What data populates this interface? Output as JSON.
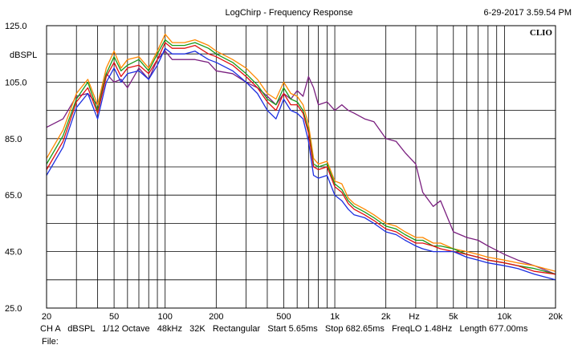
{
  "header": {
    "title": "LogChirp - Frequency Response",
    "timestamp": "6-29-2017 3.59.54 PM"
  },
  "brand": "CLIO",
  "status": {
    "channel": "CH A",
    "unit": "dBSPL",
    "smoothing": "1/12 Octave",
    "sample_rate": "48kHz",
    "size": "32K",
    "window": "Rectangular",
    "start": "Start 5.65ms",
    "stop": "Stop 682.65ms",
    "freqlo": "FreqLO 1.48Hz",
    "length": "Length 677.00ms"
  },
  "file_label": "File:",
  "chart_data": {
    "type": "line",
    "title": "LogChirp - Frequency Response",
    "xlabel": "Hz",
    "ylabel": "dBSPL",
    "xscale": "log",
    "xlim": [
      20,
      20000
    ],
    "ylim": [
      25,
      125
    ],
    "grid": true,
    "y_ticks": [
      "125.0",
      "105.0",
      "85.0",
      "65.0",
      "45.0",
      "25.0"
    ],
    "y_tick_values": [
      125,
      105,
      85,
      65,
      45,
      25
    ],
    "x_ticks": [
      {
        "value": 20,
        "label": "20"
      },
      {
        "value": 50,
        "label": "50"
      },
      {
        "value": 100,
        "label": "100"
      },
      {
        "value": 200,
        "label": "200"
      },
      {
        "value": 500,
        "label": "500"
      },
      {
        "value": 1000,
        "label": "1k"
      },
      {
        "value": 2000,
        "label": "2k"
      },
      {
        "value": 5000,
        "label": "5k"
      },
      {
        "value": 10000,
        "label": "10k"
      },
      {
        "value": 20000,
        "label": "20k"
      }
    ],
    "series": [
      {
        "color": "#7a1f7f",
        "points": [
          [
            20,
            89
          ],
          [
            25,
            92
          ],
          [
            30,
            100
          ],
          [
            35,
            101
          ],
          [
            40,
            97
          ],
          [
            45,
            108
          ],
          [
            50,
            105
          ],
          [
            55,
            106
          ],
          [
            60,
            103
          ],
          [
            70,
            110
          ],
          [
            80,
            106
          ],
          [
            90,
            113
          ],
          [
            100,
            116
          ],
          [
            110,
            113
          ],
          [
            130,
            113
          ],
          [
            150,
            113
          ],
          [
            180,
            112
          ],
          [
            200,
            109
          ],
          [
            250,
            108
          ],
          [
            300,
            105
          ],
          [
            350,
            103
          ],
          [
            400,
            100
          ],
          [
            450,
            97
          ],
          [
            500,
            101
          ],
          [
            550,
            99
          ],
          [
            600,
            102
          ],
          [
            650,
            100
          ],
          [
            700,
            107
          ],
          [
            750,
            103
          ],
          [
            800,
            97
          ],
          [
            900,
            98
          ],
          [
            1000,
            95
          ],
          [
            1100,
            97
          ],
          [
            1200,
            95
          ],
          [
            1300,
            94
          ],
          [
            1500,
            92
          ],
          [
            1700,
            91
          ],
          [
            2000,
            85
          ],
          [
            2300,
            84
          ],
          [
            2600,
            80
          ],
          [
            3000,
            76
          ],
          [
            3300,
            66
          ],
          [
            3800,
            61
          ],
          [
            4200,
            63
          ],
          [
            5000,
            52
          ],
          [
            6000,
            50
          ],
          [
            7000,
            49
          ],
          [
            8000,
            47
          ],
          [
            10000,
            44
          ],
          [
            12000,
            42
          ],
          [
            15000,
            40
          ],
          [
            20000,
            37
          ]
        ]
      },
      {
        "color": "#ff8800",
        "points": [
          [
            20,
            78
          ],
          [
            25,
            88
          ],
          [
            30,
            101
          ],
          [
            35,
            106
          ],
          [
            40,
            97
          ],
          [
            45,
            110
          ],
          [
            50,
            116
          ],
          [
            55,
            110
          ],
          [
            60,
            113
          ],
          [
            70,
            114
          ],
          [
            80,
            110
          ],
          [
            90,
            116
          ],
          [
            100,
            122
          ],
          [
            110,
            119
          ],
          [
            130,
            119
          ],
          [
            150,
            120
          ],
          [
            180,
            118
          ],
          [
            200,
            116
          ],
          [
            250,
            113
          ],
          [
            300,
            110
          ],
          [
            350,
            106
          ],
          [
            400,
            101
          ],
          [
            450,
            99
          ],
          [
            500,
            105
          ],
          [
            550,
            101
          ],
          [
            600,
            100
          ],
          [
            650,
            97
          ],
          [
            700,
            90
          ],
          [
            750,
            78
          ],
          [
            800,
            76
          ],
          [
            900,
            77
          ],
          [
            1000,
            70
          ],
          [
            1100,
            69
          ],
          [
            1200,
            64
          ],
          [
            1300,
            62
          ],
          [
            1500,
            60
          ],
          [
            1700,
            58
          ],
          [
            2000,
            55
          ],
          [
            2300,
            54
          ],
          [
            2600,
            52
          ],
          [
            3000,
            50
          ],
          [
            3300,
            50
          ],
          [
            3800,
            48
          ],
          [
            4200,
            48
          ],
          [
            5000,
            46
          ],
          [
            6000,
            45
          ],
          [
            7000,
            44
          ],
          [
            8000,
            43
          ],
          [
            10000,
            42
          ],
          [
            12000,
            41
          ],
          [
            15000,
            40
          ],
          [
            20000,
            38
          ]
        ]
      },
      {
        "color": "#1a9a1a",
        "points": [
          [
            20,
            76
          ],
          [
            25,
            86
          ],
          [
            30,
            99
          ],
          [
            35,
            105
          ],
          [
            40,
            95
          ],
          [
            45,
            108
          ],
          [
            50,
            114
          ],
          [
            55,
            109
          ],
          [
            60,
            111
          ],
          [
            70,
            113
          ],
          [
            80,
            109
          ],
          [
            90,
            115
          ],
          [
            100,
            120
          ],
          [
            110,
            118
          ],
          [
            130,
            118
          ],
          [
            150,
            119
          ],
          [
            180,
            117
          ],
          [
            200,
            115
          ],
          [
            250,
            112
          ],
          [
            300,
            108
          ],
          [
            350,
            104
          ],
          [
            400,
            99
          ],
          [
            450,
            97
          ],
          [
            500,
            103
          ],
          [
            550,
            99
          ],
          [
            600,
            98
          ],
          [
            650,
            95
          ],
          [
            700,
            88
          ],
          [
            750,
            76
          ],
          [
            800,
            75
          ],
          [
            900,
            76
          ],
          [
            1000,
            69
          ],
          [
            1100,
            67
          ],
          [
            1200,
            63
          ],
          [
            1300,
            61
          ],
          [
            1500,
            59
          ],
          [
            1700,
            57
          ],
          [
            2000,
            54
          ],
          [
            2300,
            53
          ],
          [
            2600,
            51
          ],
          [
            3000,
            49
          ],
          [
            3300,
            49
          ],
          [
            3800,
            47
          ],
          [
            4200,
            47
          ],
          [
            5000,
            46
          ],
          [
            6000,
            44
          ],
          [
            7000,
            43
          ],
          [
            8000,
            42
          ],
          [
            10000,
            41
          ],
          [
            12000,
            40
          ],
          [
            15000,
            39
          ],
          [
            20000,
            37
          ]
        ]
      },
      {
        "color": "#e01010",
        "points": [
          [
            20,
            74
          ],
          [
            25,
            84
          ],
          [
            30,
            98
          ],
          [
            35,
            103
          ],
          [
            40,
            94
          ],
          [
            45,
            107
          ],
          [
            50,
            112
          ],
          [
            55,
            107
          ],
          [
            60,
            110
          ],
          [
            70,
            111
          ],
          [
            80,
            108
          ],
          [
            90,
            113
          ],
          [
            100,
            119
          ],
          [
            110,
            117
          ],
          [
            130,
            117
          ],
          [
            150,
            118
          ],
          [
            180,
            115
          ],
          [
            200,
            114
          ],
          [
            250,
            111
          ],
          [
            300,
            107
          ],
          [
            350,
            103
          ],
          [
            400,
            98
          ],
          [
            450,
            95
          ],
          [
            500,
            101
          ],
          [
            550,
            97
          ],
          [
            600,
            97
          ],
          [
            650,
            94
          ],
          [
            700,
            87
          ],
          [
            750,
            75
          ],
          [
            800,
            74
          ],
          [
            900,
            75
          ],
          [
            1000,
            68
          ],
          [
            1100,
            66
          ],
          [
            1200,
            62
          ],
          [
            1300,
            60
          ],
          [
            1500,
            58
          ],
          [
            1700,
            56
          ],
          [
            2000,
            53
          ],
          [
            2300,
            52
          ],
          [
            2600,
            50
          ],
          [
            3000,
            48
          ],
          [
            3300,
            48
          ],
          [
            3800,
            47
          ],
          [
            4200,
            46
          ],
          [
            5000,
            45
          ],
          [
            6000,
            44
          ],
          [
            7000,
            43
          ],
          [
            8000,
            42
          ],
          [
            10000,
            41
          ],
          [
            12000,
            40
          ],
          [
            15000,
            38
          ],
          [
            20000,
            37
          ]
        ]
      },
      {
        "color": "#1c2ee0",
        "points": [
          [
            20,
            72
          ],
          [
            25,
            82
          ],
          [
            30,
            96
          ],
          [
            35,
            101
          ],
          [
            40,
            92
          ],
          [
            45,
            105
          ],
          [
            50,
            110
          ],
          [
            55,
            105
          ],
          [
            60,
            108
          ],
          [
            70,
            109
          ],
          [
            80,
            106
          ],
          [
            90,
            111
          ],
          [
            100,
            117
          ],
          [
            110,
            115
          ],
          [
            130,
            115
          ],
          [
            150,
            116
          ],
          [
            180,
            113
          ],
          [
            200,
            112
          ],
          [
            250,
            109
          ],
          [
            300,
            105
          ],
          [
            350,
            101
          ],
          [
            400,
            95
          ],
          [
            450,
            92
          ],
          [
            500,
            99
          ],
          [
            550,
            95
          ],
          [
            600,
            94
          ],
          [
            650,
            92
          ],
          [
            700,
            84
          ],
          [
            750,
            72
          ],
          [
            800,
            71
          ],
          [
            900,
            72
          ],
          [
            1000,
            65
          ],
          [
            1100,
            63
          ],
          [
            1200,
            60
          ],
          [
            1300,
            58
          ],
          [
            1500,
            57
          ],
          [
            1700,
            55
          ],
          [
            2000,
            52
          ],
          [
            2300,
            51
          ],
          [
            2600,
            49
          ],
          [
            3000,
            47
          ],
          [
            3300,
            46
          ],
          [
            3800,
            45
          ],
          [
            4200,
            45
          ],
          [
            5000,
            45
          ],
          [
            6000,
            43
          ],
          [
            7000,
            42
          ],
          [
            8000,
            41
          ],
          [
            10000,
            40
          ],
          [
            12000,
            39
          ],
          [
            15000,
            37
          ],
          [
            20000,
            35
          ]
        ]
      }
    ]
  }
}
